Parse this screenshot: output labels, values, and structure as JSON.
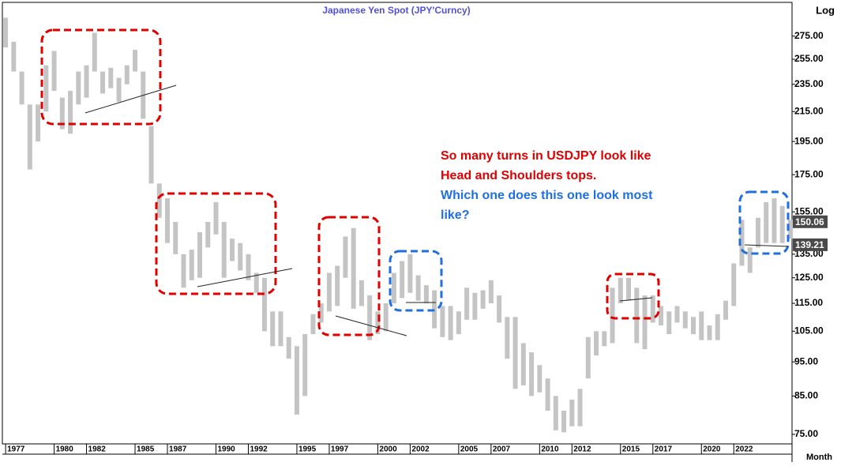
{
  "chart_data": {
    "type": "range_bar",
    "title": "Japanese Yen Spot (JPY'Curncy)",
    "log_scale": true,
    "y_scale_label": "Log",
    "x_unit_label": "Month",
    "color": "#c4c4c4",
    "grid": false,
    "x": [
      1977.0,
      1977.5,
      1978.0,
      1978.5,
      1979.0,
      1979.5,
      1980.0,
      1980.5,
      1981.0,
      1981.5,
      1982.0,
      1982.5,
      1983.0,
      1983.5,
      1984.0,
      1984.5,
      1985.0,
      1985.5,
      1986.0,
      1986.5,
      1987.0,
      1987.5,
      1988.0,
      1988.5,
      1989.0,
      1989.5,
      1990.0,
      1990.5,
      1991.0,
      1991.5,
      1992.0,
      1992.5,
      1993.0,
      1993.5,
      1994.0,
      1994.5,
      1995.0,
      1995.5,
      1996.0,
      1996.5,
      1997.0,
      1997.5,
      1998.0,
      1998.5,
      1999.0,
      1999.5,
      2000.0,
      2000.5,
      2001.0,
      2001.5,
      2002.0,
      2002.5,
      2003.0,
      2003.5,
      2004.0,
      2004.5,
      2005.0,
      2005.5,
      2006.0,
      2006.5,
      2007.0,
      2007.5,
      2008.0,
      2008.5,
      2009.0,
      2009.5,
      2010.0,
      2010.5,
      2011.0,
      2011.5,
      2012.0,
      2012.5,
      2013.0,
      2013.5,
      2014.0,
      2014.5,
      2015.0,
      2015.5,
      2016.0,
      2016.5,
      2017.0,
      2017.5,
      2018.0,
      2018.5,
      2019.0,
      2019.5,
      2020.0,
      2020.5,
      2021.0,
      2021.5,
      2022.0,
      2022.5,
      2023.0,
      2023.5,
      2024.0,
      2024.5,
      2025.0,
      2025.5
    ],
    "series": [
      {
        "name": "High",
        "values": [
          292,
          270,
          245,
          220,
          220,
          250,
          262,
          225,
          230,
          245,
          250,
          278,
          245,
          248,
          240,
          250,
          263,
          245,
          205,
          170,
          162,
          150,
          135,
          137,
          145,
          150,
          160,
          150,
          142,
          140,
          135,
          127,
          125,
          112,
          112,
          103,
          100,
          104,
          111,
          115,
          127,
          130,
          143,
          147,
          124,
          118,
          112,
          115,
          127,
          132,
          135,
          126,
          122,
          120,
          114,
          114,
          112,
          121,
          119,
          120,
          124,
          118,
          110,
          110,
          101,
          98,
          94,
          90,
          85,
          81,
          84,
          87,
          103,
          105,
          105,
          121,
          125,
          125,
          121,
          118,
          118,
          114,
          112,
          114,
          112,
          110,
          112,
          107,
          111,
          116,
          131,
          151,
          138,
          152,
          160,
          162,
          158,
          151
        ]
      },
      {
        "name": "Low",
        "values": [
          265,
          245,
          220,
          178,
          195,
          215,
          230,
          203,
          200,
          220,
          225,
          245,
          228,
          232,
          222,
          235,
          245,
          210,
          170,
          152,
          140,
          135,
          121,
          124,
          125,
          138,
          144,
          125,
          132,
          128,
          124,
          119,
          105,
          100,
          100,
          96,
          80,
          85,
          104,
          108,
          112,
          114,
          125,
          113,
          114,
          102,
          104,
          105,
          115,
          117,
          119,
          116,
          115,
          106,
          103,
          102,
          104,
          109,
          109,
          113,
          115,
          108,
          96,
          87,
          88,
          85,
          86,
          81,
          76,
          75.5,
          77,
          77,
          90,
          97,
          100,
          101,
          115,
          116,
          101,
          99,
          108,
          107,
          104,
          108,
          106,
          104,
          102,
          102,
          102,
          109,
          114,
          130,
          127,
          138,
          140,
          140,
          140,
          142
        ]
      }
    ],
    "xlim": [
      1976.8,
      2025.6
    ],
    "xticks": [
      1977,
      1980,
      1982,
      1985,
      1987,
      1990,
      1992,
      1995,
      1997,
      2000,
      2002,
      2005,
      2007,
      2010,
      2012,
      2015,
      2017,
      2020,
      2022
    ],
    "ylim": [
      72.7,
      307
    ],
    "yticks": [
      {
        "value": 75,
        "label": "75.00"
      },
      {
        "value": 85,
        "label": "85.00"
      },
      {
        "value": 95,
        "label": "95.00"
      },
      {
        "value": 105,
        "label": "105.00"
      },
      {
        "value": 115,
        "label": "115.00"
      },
      {
        "value": 125,
        "label": "125.00"
      },
      {
        "value": 135,
        "label": "135.00"
      },
      {
        "value": 155,
        "label": "155.00"
      },
      {
        "value": 175,
        "label": "175.00"
      },
      {
        "value": 195,
        "label": "195.00"
      },
      {
        "value": 215,
        "label": "215.00"
      },
      {
        "value": 235,
        "label": "235.00"
      },
      {
        "value": 255,
        "label": "255.00"
      },
      {
        "value": 275,
        "label": "275.00"
      }
    ],
    "price_labels": [
      {
        "value": 150.06,
        "label": "150.06"
      },
      {
        "value": 139.21,
        "label": "139.21"
      }
    ],
    "annotations": [
      {
        "text": "So many turns in USDJPY look like",
        "color": "#e00000"
      },
      {
        "text": "Head and Shoulders tops.",
        "color": "#e00000"
      },
      {
        "text": "Which one does this one look most",
        "color": "#1f6fe0"
      },
      {
        "text": "like?",
        "color": "#1f6fe0"
      }
    ]
  }
}
